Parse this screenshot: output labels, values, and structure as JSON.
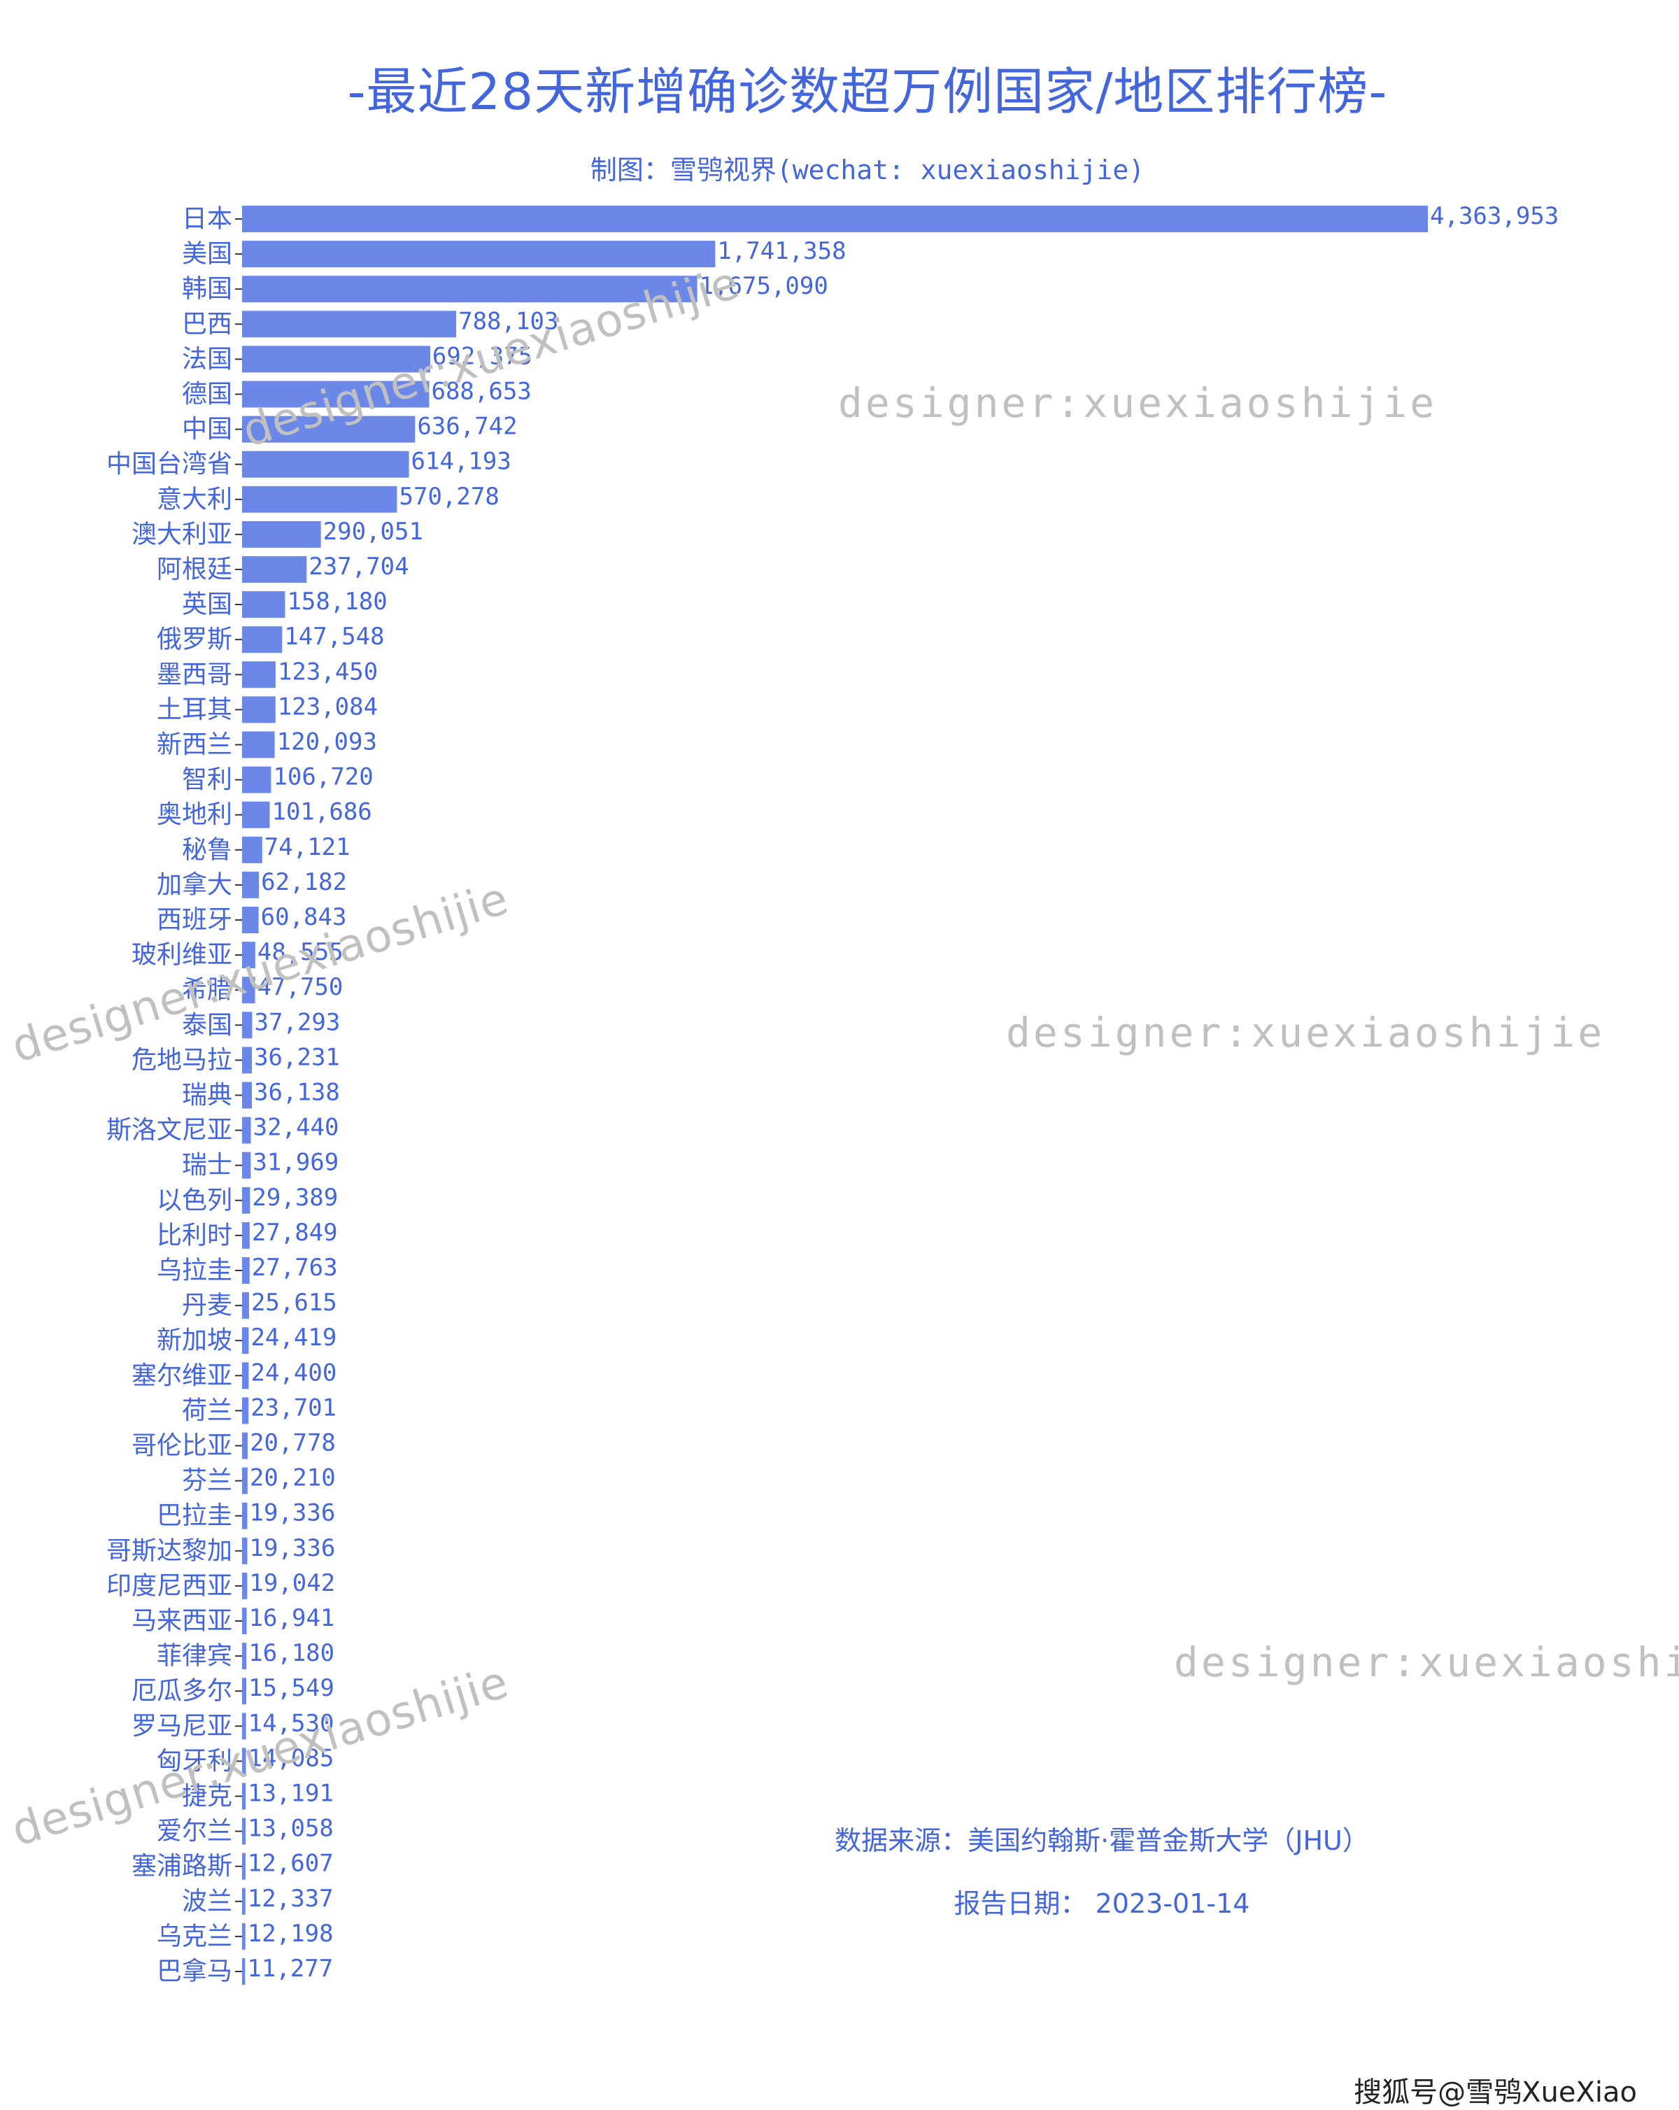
{
  "header": {
    "title": "-最近28天新增确诊数超万例国家/地区排行榜-",
    "subtitle": "制图：雪鸮视界(wechat: xuexiaoshijie)"
  },
  "footer": {
    "source": "数据来源：美国约翰斯·霍普金斯大学（JHU）",
    "report_date": "报告日期：  2023-01-14",
    "platform_mark": "搜狐号@雪鸮XueXiao"
  },
  "watermarks": {
    "straight": "designer:xuexiaoshijie",
    "rotated": "designer:xuexiaoshijie"
  },
  "colors": {
    "bar": "#6b87e8",
    "text": "#4466dd",
    "watermark": "#c0c0c0"
  },
  "chart_data": {
    "type": "bar",
    "orientation": "horizontal",
    "categories": [
      "日本",
      "美国",
      "韩国",
      "巴西",
      "法国",
      "德国",
      "中国",
      "中国台湾省",
      "意大利",
      "澳大利亚",
      "阿根廷",
      "英国",
      "俄罗斯",
      "墨西哥",
      "土耳其",
      "新西兰",
      "智利",
      "奥地利",
      "秘鲁",
      "加拿大",
      "西班牙",
      "玻利维亚",
      "希腊",
      "泰国",
      "危地马拉",
      "瑞典",
      "斯洛文尼亚",
      "瑞士",
      "以色列",
      "比利时",
      "乌拉圭",
      "丹麦",
      "新加坡",
      "塞尔维亚",
      "荷兰",
      "哥伦比亚",
      "芬兰",
      "巴拉圭",
      "哥斯达黎加",
      "印度尼西亚",
      "马来西亚",
      "菲律宾",
      "厄瓜多尔",
      "罗马尼亚",
      "匈牙利",
      "捷克",
      "爱尔兰",
      "塞浦路斯",
      "波兰",
      "乌克兰",
      "巴拿马"
    ],
    "values": [
      4363953,
      1741358,
      1675090,
      788103,
      692375,
      688653,
      636742,
      614193,
      570278,
      290051,
      237704,
      158180,
      147548,
      123450,
      123084,
      120093,
      106720,
      101686,
      74121,
      62182,
      60843,
      48555,
      47750,
      37293,
      36231,
      36138,
      32440,
      31969,
      29389,
      27849,
      27763,
      25615,
      24419,
      24400,
      23701,
      20778,
      20210,
      19336,
      19336,
      19042,
      16941,
      16180,
      15549,
      14530,
      14085,
      13191,
      13058,
      12607,
      12337,
      12198,
      11277
    ],
    "value_labels": [
      "4,363,953",
      "1,741,358",
      "1,675,090",
      "788,103",
      "692,375",
      "688,653",
      "636,742",
      "614,193",
      "570,278",
      "290,051",
      "237,704",
      "158,180",
      "147,548",
      "123,450",
      "123,084",
      "120,093",
      "106,720",
      "101,686",
      "74,121",
      "62,182",
      "60,843",
      "48,555",
      "47,750",
      "37,293",
      "36,231",
      "36,138",
      "32,440",
      "31,969",
      "29,389",
      "27,849",
      "27,763",
      "25,615",
      "24,419",
      "24,400",
      "23,701",
      "20,778",
      "20,210",
      "19,336",
      "19,336",
      "19,042",
      "16,941",
      "16,180",
      "15,549",
      "14,530",
      "14,085",
      "13,191",
      "13,058",
      "12,607",
      "12,337",
      "12,198",
      "11,277"
    ],
    "xlim": [
      0,
      4363953
    ],
    "grid": false,
    "legend": "none"
  }
}
